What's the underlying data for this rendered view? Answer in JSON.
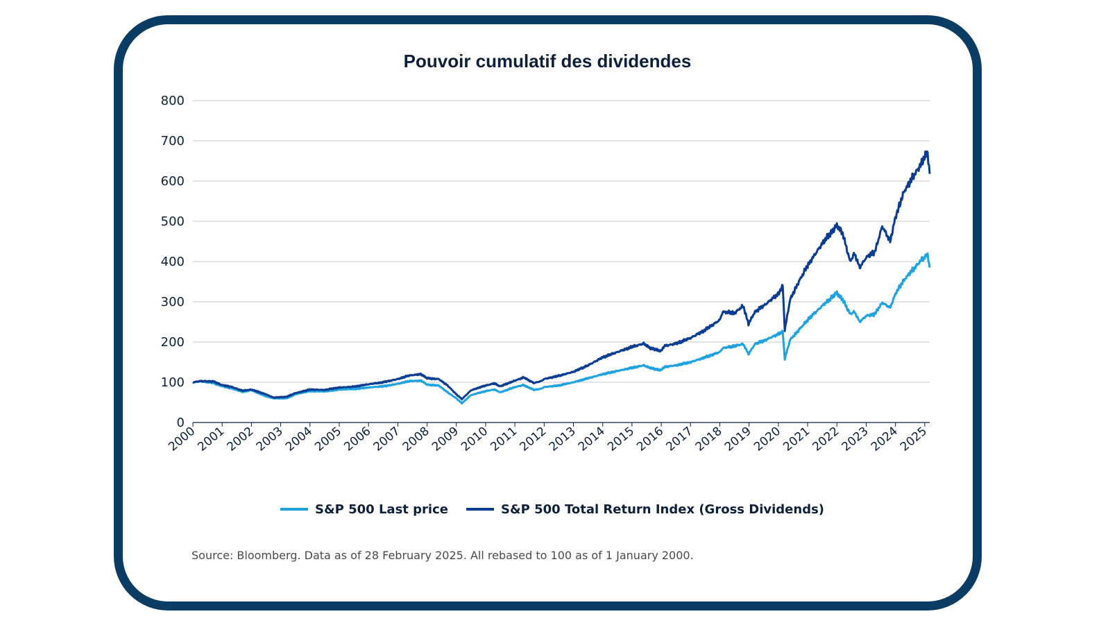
{
  "chart_data": {
    "type": "line",
    "title": "Pouvoir cumulatif des dividendes",
    "xlabel": "",
    "ylabel": "",
    "ylim": [
      0,
      800
    ],
    "yticks": [
      "0",
      "100",
      "200",
      "300",
      "400",
      "500",
      "600",
      "700",
      "800"
    ],
    "xlim": [
      2000,
      2025.17
    ],
    "xticks": [
      "2000",
      "2001",
      "2002",
      "2003",
      "2004",
      "2005",
      "2006",
      "2007",
      "2008",
      "2009",
      "2010",
      "2011",
      "2012",
      "2013",
      "2014",
      "2015",
      "2016",
      "2017",
      "2018",
      "2019",
      "2020",
      "2021",
      "2022",
      "2023",
      "2024",
      "2025"
    ],
    "grid": "horizontal",
    "legend_position": "bottom",
    "source": "Source: Bloomberg. Data as of 28 February 2025. All rebased to 100 as of 1 January 2000.",
    "series": [
      {
        "name": "S&P 500 Last price",
        "color": "#1ea3e0",
        "x": [
          2000,
          2000.25,
          2000.7,
          2001,
          2001.3,
          2001.7,
          2002,
          2002.5,
          2002.75,
          2003,
          2003.2,
          2003.5,
          2004,
          2004.5,
          2005,
          2005.5,
          2006,
          2006.5,
          2007,
          2007.4,
          2007.8,
          2008,
          2008.4,
          2008.7,
          2009,
          2009.19,
          2009.5,
          2010,
          2010.3,
          2010.5,
          2011,
          2011.3,
          2011.65,
          2011.9,
          2012,
          2012.5,
          2013,
          2013.5,
          2014,
          2014.5,
          2015,
          2015.4,
          2015.65,
          2016,
          2016.1,
          2016.5,
          2017,
          2017.5,
          2018,
          2018.1,
          2018.5,
          2018.8,
          2018.98,
          2019.2,
          2019.5,
          2020,
          2020.15,
          2020.22,
          2020.4,
          2020.7,
          2021,
          2021.5,
          2022,
          2022.2,
          2022.45,
          2022.6,
          2022.78,
          2023,
          2023.3,
          2023.55,
          2023.82,
          2024,
          2024.3,
          2024.6,
          2024.9,
          2025,
          2025.1,
          2025.17
        ],
        "values": [
          100,
          102,
          98,
          90,
          85,
          76,
          80,
          65,
          60,
          60,
          60,
          70,
          78,
          77,
          82,
          83,
          87,
          90,
          96,
          103,
          104,
          94,
          92,
          75,
          60,
          48,
          68,
          78,
          82,
          75,
          88,
          93,
          81,
          84,
          88,
          92,
          100,
          110,
          120,
          128,
          136,
          142,
          135,
          130,
          138,
          142,
          150,
          162,
          175,
          185,
          190,
          195,
          170,
          195,
          203,
          220,
          225,
          158,
          205,
          230,
          255,
          290,
          322,
          305,
          270,
          275,
          250,
          265,
          270,
          298,
          285,
          320,
          355,
          380,
          405,
          410,
          420,
          385
        ]
      },
      {
        "name": "S&P 500 Total Return Index (Gross Dividends)",
        "color": "#0a3d91",
        "x": [
          2000,
          2000.25,
          2000.7,
          2001,
          2001.3,
          2001.7,
          2002,
          2002.5,
          2002.75,
          2003,
          2003.2,
          2003.5,
          2004,
          2004.5,
          2005,
          2005.5,
          2006,
          2006.5,
          2007,
          2007.4,
          2007.8,
          2008,
          2008.4,
          2008.7,
          2009,
          2009.19,
          2009.5,
          2010,
          2010.3,
          2010.5,
          2011,
          2011.3,
          2011.65,
          2011.9,
          2012,
          2012.5,
          2013,
          2013.5,
          2014,
          2014.5,
          2015,
          2015.4,
          2015.65,
          2016,
          2016.1,
          2016.5,
          2017,
          2017.5,
          2018,
          2018.1,
          2018.5,
          2018.8,
          2018.98,
          2019.2,
          2019.5,
          2020,
          2020.15,
          2020.22,
          2020.4,
          2020.7,
          2021,
          2021.5,
          2022,
          2022.2,
          2022.45,
          2022.6,
          2022.78,
          2023,
          2023.3,
          2023.55,
          2023.82,
          2024,
          2024.3,
          2024.6,
          2024.9,
          2025,
          2025.1,
          2025.17
        ],
        "values": [
          100,
          103,
          102,
          93,
          89,
          79,
          82,
          70,
          62,
          63,
          64,
          73,
          82,
          81,
          87,
          89,
          95,
          100,
          108,
          117,
          120,
          110,
          108,
          92,
          70,
          58,
          80,
          92,
          97,
          90,
          104,
          112,
          98,
          103,
          108,
          116,
          126,
          142,
          162,
          175,
          188,
          196,
          184,
          178,
          190,
          196,
          210,
          230,
          255,
          275,
          272,
          290,
          245,
          275,
          290,
          320,
          340,
          230,
          305,
          350,
          390,
          445,
          490,
          470,
          400,
          420,
          385,
          410,
          425,
          488,
          450,
          510,
          575,
          610,
          645,
          660,
          672,
          618
        ]
      }
    ]
  }
}
